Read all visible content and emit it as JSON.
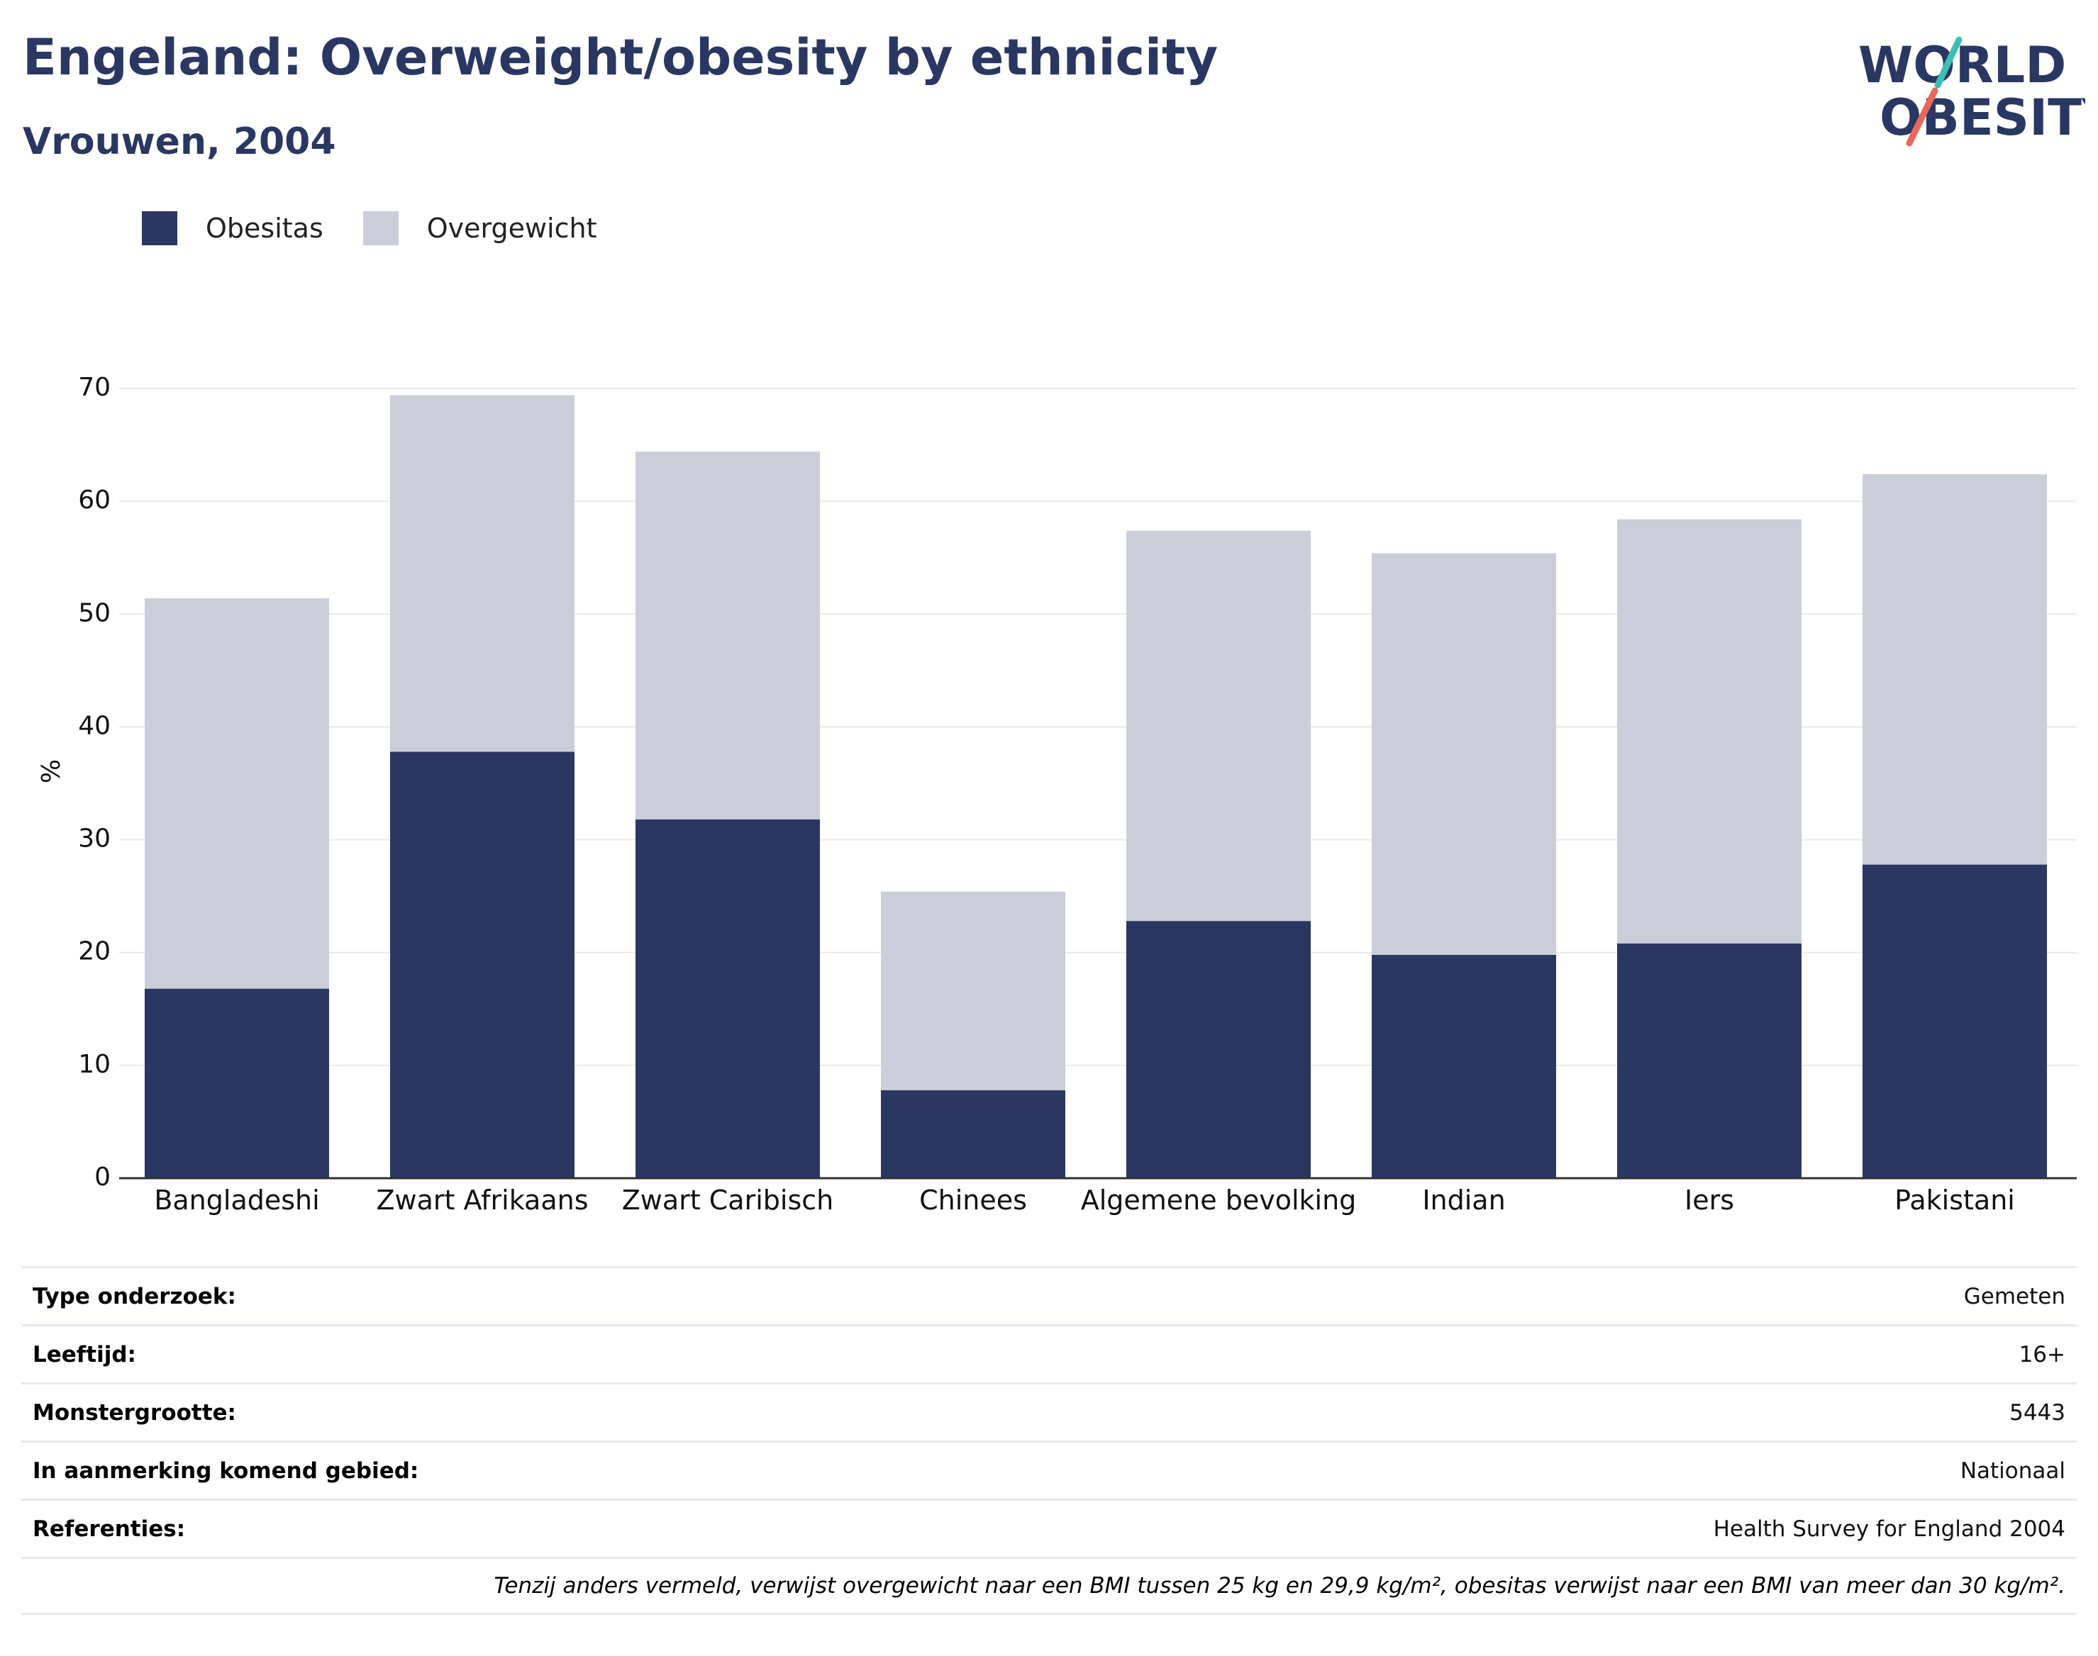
{
  "header": {
    "title": "Engeland: Overweight/obesity by ethnicity",
    "subtitle": "Vrouwen, 2004"
  },
  "logo": {
    "line1": "WORLD",
    "line2": "OBESITY"
  },
  "legend": [
    {
      "label": "Obesitas",
      "color": "#2a3762"
    },
    {
      "label": "Overgewicht",
      "color": "#cbcdd8"
    }
  ],
  "chart_data": {
    "type": "bar",
    "stacked": true,
    "categories": [
      "Bangladeshi",
      "Zwart Afrikaans",
      "Zwart Caribisch",
      "Chinees",
      "Algemene bevolking",
      "Indian",
      "Iers",
      "Pakistani"
    ],
    "series": [
      {
        "name": "Obesitas",
        "color": "#2a3762",
        "values": [
          16.8,
          37.8,
          31.8,
          7.8,
          22.8,
          19.8,
          20.8,
          27.8
        ]
      },
      {
        "name": "Overgewicht",
        "color": "#cbcdd8",
        "values": [
          34.6,
          31.6,
          32.6,
          17.6,
          34.6,
          35.6,
          37.6,
          34.6
        ]
      }
    ],
    "ylabel": "%",
    "ylim": [
      0,
      70
    ],
    "yticks": [
      0,
      10,
      20,
      30,
      40,
      50,
      60,
      70
    ],
    "grid": true
  },
  "info": [
    {
      "key": "Type onderzoek:",
      "value": "Gemeten"
    },
    {
      "key": "Leeftijd:",
      "value": "16+"
    },
    {
      "key": "Monstergrootte:",
      "value": "5443"
    },
    {
      "key": "In aanmerking komend gebied:",
      "value": "Nationaal"
    },
    {
      "key": "Referenties:",
      "value": "Health Survey for England 2004"
    }
  ],
  "note": "Tenzij anders vermeld, verwijst overgewicht naar een BMI tussen 25 kg en 29,9 kg/m², obesitas verwijst naar een BMI van meer dan 30 kg/m²."
}
